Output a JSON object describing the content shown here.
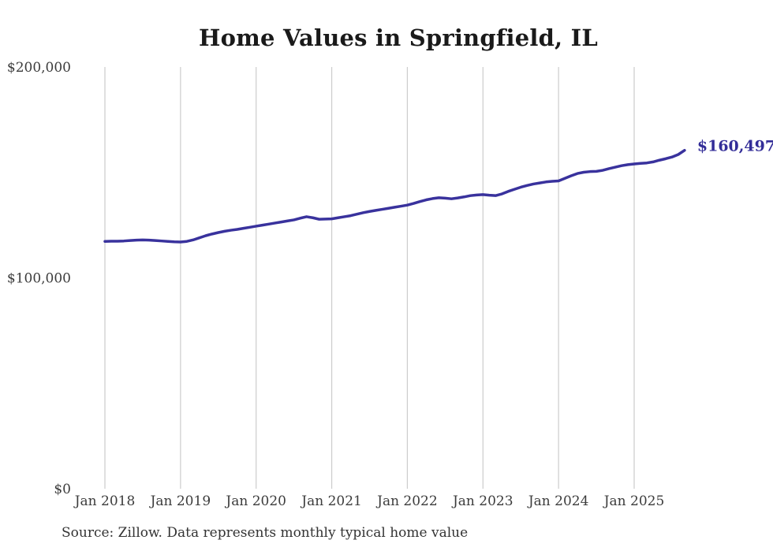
{
  "page": {
    "background": "#ffffff"
  },
  "header": {
    "title": "Home Values in Springfield, IL"
  },
  "footer": {
    "source_note": "Source: Zillow. Data represents monthly typical home value"
  },
  "colors": {
    "line": "#39329d",
    "end_label": "#332d98",
    "gridline": "#cccccc",
    "title_text": "#1a1a1a",
    "axis_text": "#3c3c3c",
    "source_text": "#333333"
  },
  "chart_data": {
    "type": "line",
    "title": "Home Values in Springfield, IL",
    "xlabel": "",
    "ylabel": "",
    "ylim": [
      0,
      200000
    ],
    "grid": "vertical-only",
    "legend": "none",
    "end_label": "$160,497",
    "final_value": 160497,
    "y_ticks": [
      {
        "value": 0,
        "label": "$0"
      },
      {
        "value": 100000,
        "label": "$100,000"
      },
      {
        "value": 200000,
        "label": "$200,000"
      }
    ],
    "x_ticks": [
      {
        "month_index": 0,
        "label": "Jan 2018"
      },
      {
        "month_index": 12,
        "label": "Jan 2019"
      },
      {
        "month_index": 24,
        "label": "Jan 2020"
      },
      {
        "month_index": 36,
        "label": "Jan 2021"
      },
      {
        "month_index": 48,
        "label": "Jan 2022"
      },
      {
        "month_index": 60,
        "label": "Jan 2023"
      },
      {
        "month_index": 72,
        "label": "Jan 2024"
      },
      {
        "month_index": 84,
        "label": "Jan 2025"
      }
    ],
    "series": [
      {
        "name": "Typical home value (monthly)",
        "start_month": "2018-01",
        "end_month": "2025-09",
        "values": [
          117300,
          117400,
          117400,
          117500,
          117700,
          117900,
          118000,
          117900,
          117700,
          117500,
          117300,
          117100,
          117000,
          117300,
          118000,
          119000,
          120000,
          120800,
          121500,
          122100,
          122600,
          123000,
          123500,
          124000,
          124500,
          125000,
          125500,
          126000,
          126500,
          127000,
          127500,
          128300,
          129000,
          128500,
          127800,
          127900,
          128000,
          128500,
          129000,
          129500,
          130200,
          130900,
          131500,
          132000,
          132500,
          133000,
          133500,
          134000,
          134500,
          135300,
          136200,
          137000,
          137600,
          138000,
          137800,
          137500,
          137900,
          138400,
          139000,
          139300,
          139500,
          139200,
          139000,
          139800,
          141000,
          142000,
          143000,
          143800,
          144500,
          145000,
          145500,
          145800,
          146000,
          147200,
          148400,
          149500,
          150100,
          150400,
          150500,
          151000,
          151800,
          152500,
          153200,
          153700,
          154000,
          154300,
          154500,
          155000,
          155800,
          156500,
          157300,
          158500,
          160497
        ]
      }
    ]
  }
}
